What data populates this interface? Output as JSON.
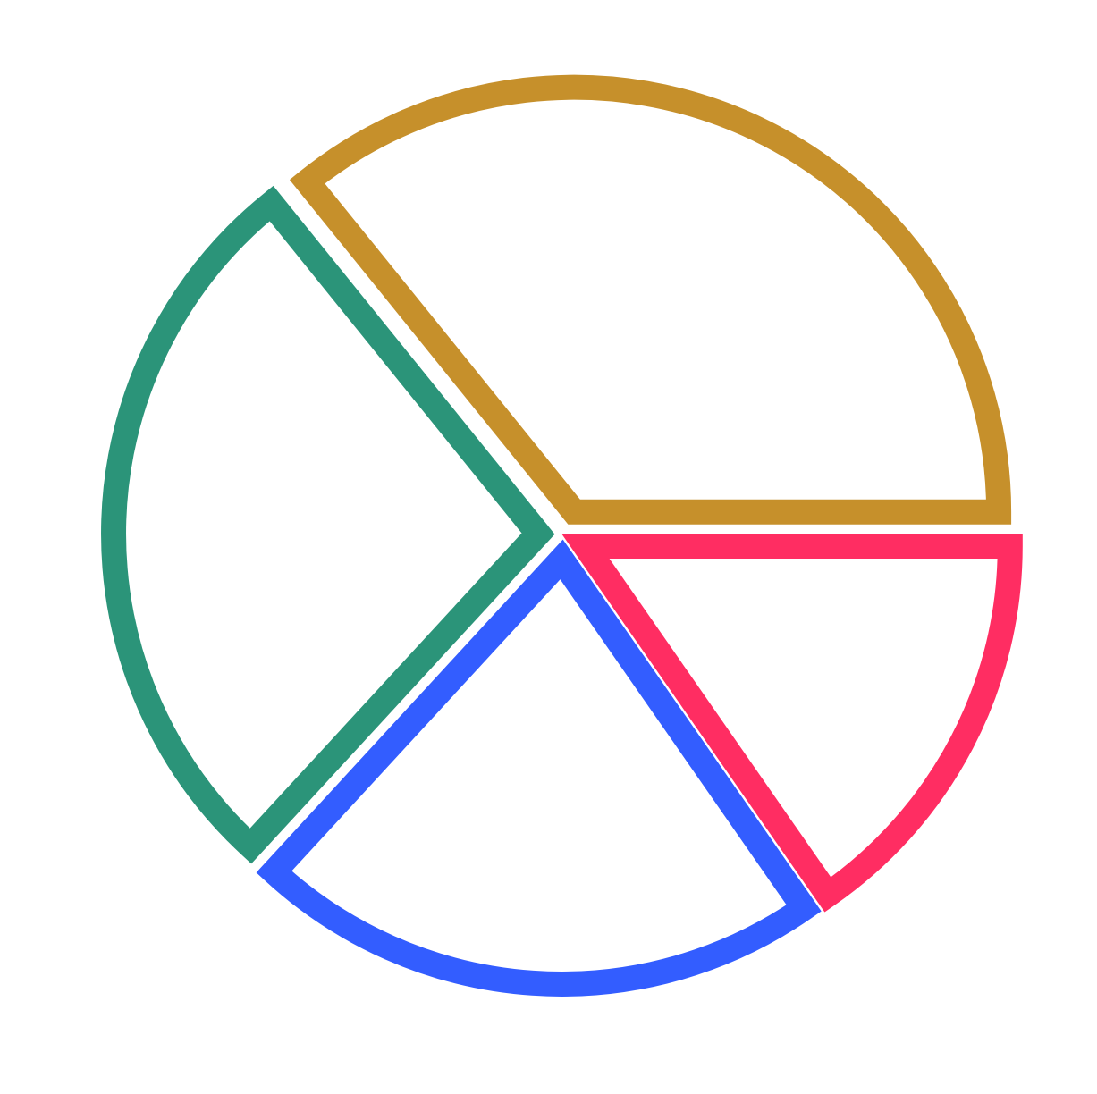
{
  "chart_data": {
    "type": "pie",
    "style": "exploded outline",
    "legend": "none",
    "slices": [
      {
        "value": 31.3,
        "color": "#C6902B"
      },
      {
        "value": 23.9,
        "color": "#2B9479"
      },
      {
        "value": 18.8,
        "color": "#335DFF"
      },
      {
        "value": 13.4,
        "color": "#FF2D62"
      }
    ]
  }
}
